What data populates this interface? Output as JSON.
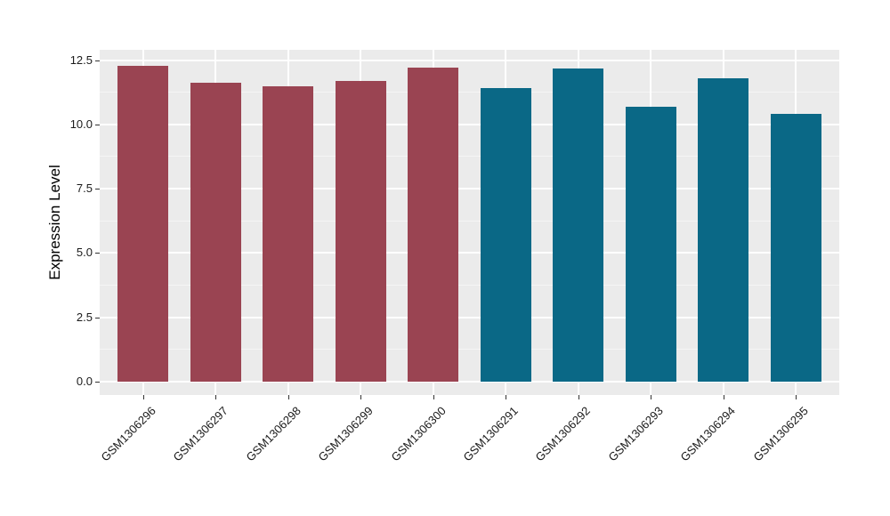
{
  "figure": {
    "background": "#FFFFFF"
  },
  "chart_data": {
    "type": "bar",
    "title": "",
    "xlabel": "",
    "ylabel": "Expression Level",
    "categories": [
      "GSM1306296",
      "GSM1306297",
      "GSM1306298",
      "GSM1306299",
      "GSM1306300",
      "GSM1306291",
      "GSM1306292",
      "GSM1306293",
      "GSM1306294",
      "GSM1306295"
    ],
    "values": [
      12.28,
      11.62,
      11.48,
      11.68,
      12.22,
      11.42,
      12.18,
      10.67,
      11.8,
      10.4
    ],
    "bar_colors": [
      "#9A4452",
      "#9A4452",
      "#9A4452",
      "#9A4452",
      "#9A4452",
      "#0A6886",
      "#0A6886",
      "#0A6886",
      "#0A6886",
      "#0A6886"
    ],
    "group_colors": {
      "left_group": "#9A4452",
      "right_group": "#0A6886"
    },
    "y_ticks": [
      {
        "label": "0.0",
        "value": 0
      },
      {
        "label": "2.5",
        "value": 2.5
      },
      {
        "label": "5.0",
        "value": 5
      },
      {
        "label": "7.5",
        "value": 7.5
      },
      {
        "label": "10.0",
        "value": 10
      },
      {
        "label": "12.5",
        "value": 12.5
      }
    ],
    "y_minor_ticks": [
      1.25,
      3.75,
      6.25,
      8.75,
      11.25
    ],
    "ylim": [
      -0.55,
      12.9
    ],
    "grid": "on",
    "legend": "none",
    "panel_background": "#EBEBEB",
    "major_grid_color": "#FFFFFF",
    "minor_grid_color": "#F5F5F5",
    "tick_color": "#333333",
    "text_color": "#1a1a1a"
  }
}
